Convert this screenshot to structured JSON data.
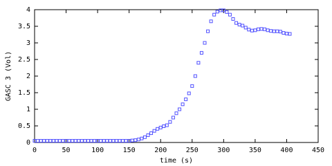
{
  "chart_data": {
    "type": "scatter",
    "xlabel": "time (s)",
    "ylabel": "GASC 3 (Vol)",
    "xlim": [
      0,
      450
    ],
    "xticks": [
      0,
      50,
      100,
      150,
      200,
      250,
      300,
      350,
      400,
      450
    ],
    "ylim": [
      0,
      4
    ],
    "yticks": [
      0,
      0.5,
      1,
      1.5,
      2,
      2.5,
      3,
      3.5,
      4
    ],
    "series": [
      {
        "color": "#5050ff",
        "x": [
          0,
          5,
          10,
          15,
          20,
          25,
          30,
          35,
          40,
          45,
          50,
          55,
          60,
          65,
          70,
          75,
          80,
          85,
          90,
          95,
          100,
          105,
          110,
          115,
          120,
          125,
          130,
          135,
          140,
          145,
          150,
          155,
          160,
          165,
          170,
          175,
          180,
          185,
          190,
          195,
          200,
          205,
          210,
          215,
          220,
          225,
          230,
          235,
          240,
          245,
          250,
          255,
          260,
          265,
          270,
          275,
          280,
          285,
          290,
          295,
          300,
          305,
          310,
          315,
          320,
          325,
          330,
          335,
          340,
          345,
          350,
          355,
          360,
          365,
          370,
          375,
          380,
          385,
          390,
          395,
          400,
          405
        ],
        "values": [
          0.05,
          0.05,
          0.05,
          0.05,
          0.05,
          0.05,
          0.05,
          0.05,
          0.05,
          0.05,
          0.05,
          0.05,
          0.05,
          0.05,
          0.05,
          0.05,
          0.05,
          0.05,
          0.05,
          0.05,
          0.05,
          0.05,
          0.05,
          0.05,
          0.05,
          0.05,
          0.05,
          0.05,
          0.05,
          0.05,
          0.05,
          0.06,
          0.07,
          0.09,
          0.12,
          0.16,
          0.22,
          0.28,
          0.35,
          0.41,
          0.45,
          0.49,
          0.52,
          0.62,
          0.75,
          0.88,
          1.0,
          1.15,
          1.3,
          1.48,
          1.7,
          2.0,
          2.4,
          2.7,
          3.0,
          3.35,
          3.65,
          3.85,
          3.94,
          3.98,
          3.98,
          3.93,
          3.85,
          3.72,
          3.6,
          3.55,
          3.52,
          3.46,
          3.4,
          3.37,
          3.38,
          3.41,
          3.42,
          3.41,
          3.38,
          3.36,
          3.35,
          3.35,
          3.34,
          3.3,
          3.28,
          3.27
        ]
      }
    ]
  }
}
